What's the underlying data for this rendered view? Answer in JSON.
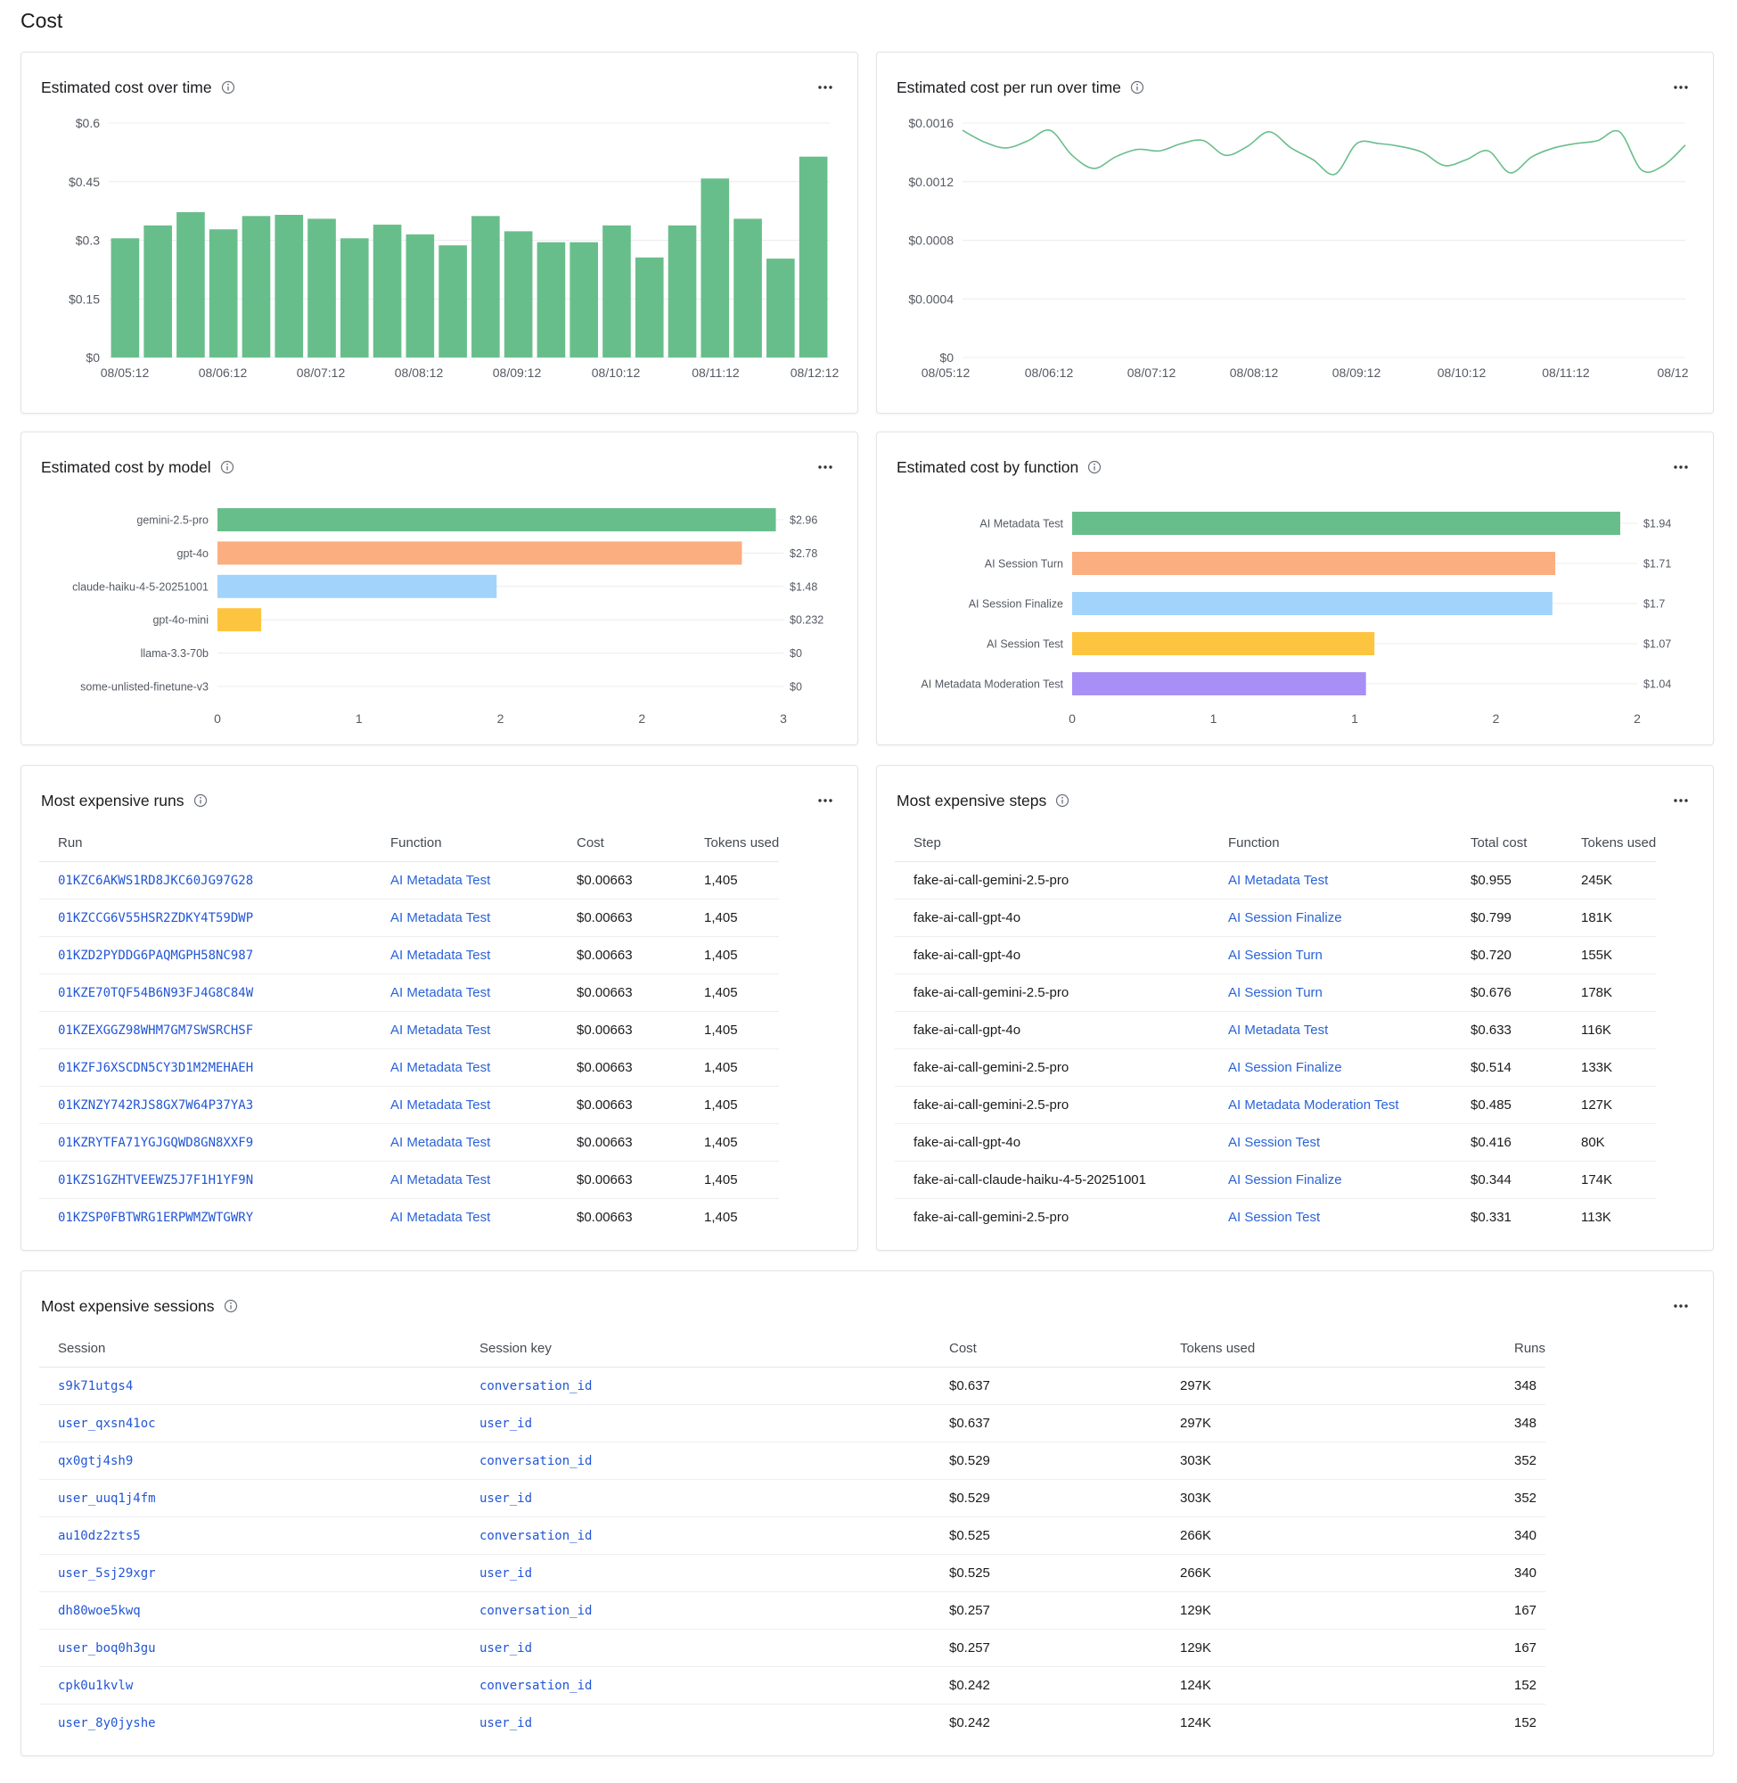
{
  "page": {
    "title": "Cost"
  },
  "cards": {
    "cost_over_time": {
      "title": "Estimated cost over time"
    },
    "cost_per_run": {
      "title": "Estimated cost per run over time"
    },
    "cost_by_model": {
      "title": "Estimated cost by model"
    },
    "cost_by_function": {
      "title": "Estimated cost by function"
    },
    "expensive_runs": {
      "title": "Most expensive runs"
    },
    "expensive_steps": {
      "title": "Most expensive steps"
    },
    "expensive_sessions": {
      "title": "Most expensive sessions"
    }
  },
  "colors": {
    "green": "#68be8b",
    "orange": "#fbae7f",
    "blue": "#a2d3fb",
    "yellow": "#fdc53f",
    "purple": "#a88ff6",
    "link": "#2a63d8",
    "grid": "#ececf0"
  },
  "chart_data": [
    {
      "id": "cost_over_time",
      "type": "bar",
      "x_ticks": [
        "08/05:12",
        "08/06:12",
        "08/07:12",
        "08/08:12",
        "08/09:12",
        "08/10:12",
        "08/11:12",
        "08/12:12"
      ],
      "y_ticks": [
        "$0",
        "$0.15",
        "$0.3",
        "$0.45",
        "$0.6"
      ],
      "ylim": [
        0,
        0.6
      ],
      "values": [
        0.305,
        0.338,
        0.372,
        0.328,
        0.362,
        0.365,
        0.355,
        0.305,
        0.34,
        0.315,
        0.287,
        0.362,
        0.323,
        0.295,
        0.295,
        0.338,
        0.256,
        0.338,
        0.458,
        0.355,
        0.253,
        0.514
      ]
    },
    {
      "id": "cost_per_run",
      "type": "line",
      "x_ticks": [
        "08/05:12",
        "08/06:12",
        "08/07:12",
        "08/08:12",
        "08/09:12",
        "08/10:12",
        "08/11:12",
        "08/12"
      ],
      "y_ticks": [
        "$0",
        "$0.0004",
        "$0.0008",
        "$0.0012",
        "$0.0016"
      ],
      "ylim": [
        0,
        0.0016
      ],
      "values": [
        0.00155,
        0.00147,
        0.00143,
        0.00148,
        0.00155,
        0.00138,
        0.00129,
        0.00137,
        0.00142,
        0.00141,
        0.00146,
        0.00148,
        0.00138,
        0.00144,
        0.00154,
        0.00143,
        0.00135,
        0.00125,
        0.00146,
        0.00146,
        0.00144,
        0.0014,
        0.00131,
        0.00135,
        0.00141,
        0.00126,
        0.00137,
        0.00143,
        0.00146,
        0.00148,
        0.00154,
        0.00128,
        0.00131,
        0.00145
      ]
    },
    {
      "id": "cost_by_model",
      "type": "bar",
      "orientation": "horizontal",
      "categories": [
        "gemini-2.5-pro",
        "gpt-4o",
        "claude-haiku-4-5-20251001",
        "gpt-4o-mini",
        "llama-3.3-70b",
        "some-unlisted-finetune-v3"
      ],
      "values": [
        2.96,
        2.78,
        1.48,
        0.232,
        0,
        0
      ],
      "value_labels": [
        "$2.96",
        "$2.78",
        "$1.48",
        "$0.232",
        "$0",
        "$0"
      ],
      "bar_colors": [
        "#68be8b",
        "#fbae7f",
        "#a2d3fb",
        "#fdc53f",
        "#a88ff6",
        "#68be8b"
      ],
      "x_ticks": [
        "0",
        "1",
        "2",
        "2",
        "3"
      ],
      "xlim": [
        0,
        3
      ]
    },
    {
      "id": "cost_by_function",
      "type": "bar",
      "orientation": "horizontal",
      "categories": [
        "AI Metadata Test",
        "AI Session Turn",
        "AI Session Finalize",
        "AI Session Test",
        "AI Metadata Moderation Test"
      ],
      "values": [
        1.94,
        1.71,
        1.7,
        1.07,
        1.04
      ],
      "value_labels": [
        "$1.94",
        "$1.71",
        "$1.7",
        "$1.07",
        "$1.04"
      ],
      "bar_colors": [
        "#68be8b",
        "#fbae7f",
        "#a2d3fb",
        "#fdc53f",
        "#a88ff6"
      ],
      "x_ticks": [
        "0",
        "1",
        "1",
        "2",
        "2"
      ],
      "xlim": [
        0,
        2
      ]
    }
  ],
  "runs": {
    "columns": [
      "Run",
      "Function",
      "Cost",
      "Tokens used"
    ],
    "rows": [
      [
        "01KZC6AKWS1RD8JKC60JG97G28",
        "AI Metadata Test",
        "$0.00663",
        "1,405"
      ],
      [
        "01KZCCG6V55HSR2ZDKY4T59DWP",
        "AI Metadata Test",
        "$0.00663",
        "1,405"
      ],
      [
        "01KZD2PYDDG6PAQMGPH58NC987",
        "AI Metadata Test",
        "$0.00663",
        "1,405"
      ],
      [
        "01KZE70TQF54B6N93FJ4G8C84W",
        "AI Metadata Test",
        "$0.00663",
        "1,405"
      ],
      [
        "01KZEXGGZ98WHM7GM7SWSRCHSF",
        "AI Metadata Test",
        "$0.00663",
        "1,405"
      ],
      [
        "01KZFJ6XSCDN5CY3D1M2MEHAEH",
        "AI Metadata Test",
        "$0.00663",
        "1,405"
      ],
      [
        "01KZNZY742RJS8GX7W64P37YA3",
        "AI Metadata Test",
        "$0.00663",
        "1,405"
      ],
      [
        "01KZRYTFA71YGJGQWD8GN8XXF9",
        "AI Metadata Test",
        "$0.00663",
        "1,405"
      ],
      [
        "01KZS1GZHTVEEWZ5J7F1H1YF9N",
        "AI Metadata Test",
        "$0.00663",
        "1,405"
      ],
      [
        "01KZSP0FBTWRG1ERPWMZWTGWRY",
        "AI Metadata Test",
        "$0.00663",
        "1,405"
      ]
    ]
  },
  "steps": {
    "columns": [
      "Step",
      "Function",
      "Total cost",
      "Tokens used"
    ],
    "rows": [
      [
        "fake-ai-call-gemini-2.5-pro",
        "AI Metadata Test",
        "$0.955",
        "245K"
      ],
      [
        "fake-ai-call-gpt-4o",
        "AI Session Finalize",
        "$0.799",
        "181K"
      ],
      [
        "fake-ai-call-gpt-4o",
        "AI Session Turn",
        "$0.720",
        "155K"
      ],
      [
        "fake-ai-call-gemini-2.5-pro",
        "AI Session Turn",
        "$0.676",
        "178K"
      ],
      [
        "fake-ai-call-gpt-4o",
        "AI Metadata Test",
        "$0.633",
        "116K"
      ],
      [
        "fake-ai-call-gemini-2.5-pro",
        "AI Session Finalize",
        "$0.514",
        "133K"
      ],
      [
        "fake-ai-call-gemini-2.5-pro",
        "AI Metadata Moderation Test",
        "$0.485",
        "127K"
      ],
      [
        "fake-ai-call-gpt-4o",
        "AI Session Test",
        "$0.416",
        "80K"
      ],
      [
        "fake-ai-call-claude-haiku-4-5-20251001",
        "AI Session Finalize",
        "$0.344",
        "174K"
      ],
      [
        "fake-ai-call-gemini-2.5-pro",
        "AI Session Test",
        "$0.331",
        "113K"
      ]
    ]
  },
  "sessions": {
    "columns": [
      "Session",
      "Session key",
      "Cost",
      "Tokens used",
      "Runs"
    ],
    "rows": [
      [
        "s9k71utgs4",
        "conversation_id",
        "$0.637",
        "297K",
        "348"
      ],
      [
        "user_qxsn41oc",
        "user_id",
        "$0.637",
        "297K",
        "348"
      ],
      [
        "qx0gtj4sh9",
        "conversation_id",
        "$0.529",
        "303K",
        "352"
      ],
      [
        "user_uuq1j4fm",
        "user_id",
        "$0.529",
        "303K",
        "352"
      ],
      [
        "au10dz2zts5",
        "conversation_id",
        "$0.525",
        "266K",
        "340"
      ],
      [
        "user_5sj29xgr",
        "user_id",
        "$0.525",
        "266K",
        "340"
      ],
      [
        "dh80woe5kwq",
        "conversation_id",
        "$0.257",
        "129K",
        "167"
      ],
      [
        "user_boq0h3gu",
        "user_id",
        "$0.257",
        "129K",
        "167"
      ],
      [
        "cpk0u1kvlw",
        "conversation_id",
        "$0.242",
        "124K",
        "152"
      ],
      [
        "user_8y0jyshe",
        "user_id",
        "$0.242",
        "124K",
        "152"
      ]
    ]
  }
}
